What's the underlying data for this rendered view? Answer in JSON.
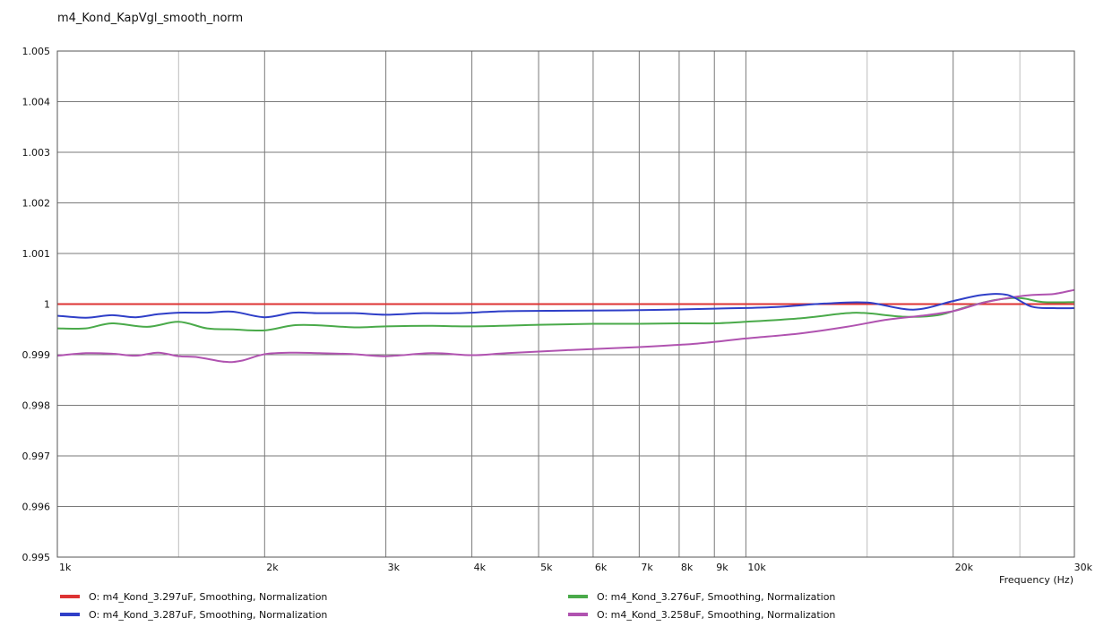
{
  "chart_data": {
    "type": "line",
    "title": "m4_Kond_KapVgl_smooth_norm",
    "xlabel": "Frequency  (Hz)",
    "ylabel": "",
    "x_scale": "log",
    "xlim": [
      1000,
      30000
    ],
    "ylim": [
      0.995,
      1.005
    ],
    "grid": true,
    "legend_position": "bottom",
    "x_major_ticks": [
      {
        "value": 1000,
        "label": "1k"
      },
      {
        "value": 2000,
        "label": "2k"
      },
      {
        "value": 3000,
        "label": "3k"
      },
      {
        "value": 4000,
        "label": "4k"
      },
      {
        "value": 5000,
        "label": "5k"
      },
      {
        "value": 6000,
        "label": "6k"
      },
      {
        "value": 7000,
        "label": "7k"
      },
      {
        "value": 8000,
        "label": "8k"
      },
      {
        "value": 9000,
        "label": "9k"
      },
      {
        "value": 10000,
        "label": "10k"
      },
      {
        "value": 20000,
        "label": "20k"
      },
      {
        "value": 30000,
        "label": "30k"
      }
    ],
    "x_minor_ticks": [
      1500,
      15000,
      25000
    ],
    "y_ticks": [
      {
        "value": 0.995,
        "label": "0.995"
      },
      {
        "value": 0.996,
        "label": "0.996"
      },
      {
        "value": 0.997,
        "label": "0.997"
      },
      {
        "value": 0.998,
        "label": "0.998"
      },
      {
        "value": 0.999,
        "label": "0.999"
      },
      {
        "value": 1.0,
        "label": "1"
      },
      {
        "value": 1.001,
        "label": "1.001"
      },
      {
        "value": 1.002,
        "label": "1.002"
      },
      {
        "value": 1.003,
        "label": "1.003"
      },
      {
        "value": 1.004,
        "label": "1.004"
      },
      {
        "value": 1.005,
        "label": "1.005"
      }
    ],
    "series": [
      {
        "name": "O: m4_Kond_3.297uF, Smoothing, Normalization",
        "color": "#dd3333",
        "x": [
          1000,
          30000
        ],
        "y": [
          1.0,
          1.0
        ]
      },
      {
        "name": "O: m4_Kond_3.287uF, Smoothing, Normalization",
        "color": "#2f3fc8",
        "x": [
          1000,
          1100,
          1200,
          1300,
          1400,
          1500,
          1650,
          1800,
          2000,
          2200,
          2400,
          2700,
          3000,
          3400,
          3800,
          4500,
          5500,
          7000,
          9000,
          11000,
          13000,
          15000,
          17500,
          20000,
          22000,
          24000,
          26000,
          28000,
          30000
        ],
        "y": [
          0.99977,
          0.99973,
          0.99978,
          0.99974,
          0.9998,
          0.99983,
          0.99983,
          0.99985,
          0.99974,
          0.99983,
          0.99982,
          0.99982,
          0.99979,
          0.99982,
          0.99982,
          0.99986,
          0.99987,
          0.99988,
          0.99991,
          0.99994,
          1.00001,
          1.00003,
          0.99989,
          1.00006,
          1.00018,
          1.00018,
          0.99995,
          0.99992,
          0.99992
        ]
      },
      {
        "name": "O: m4_Kond_3.276uF, Smoothing, Normalization",
        "color": "#4aaa4a",
        "x": [
          1000,
          1100,
          1200,
          1350,
          1500,
          1650,
          1800,
          2000,
          2200,
          2400,
          2700,
          3000,
          3500,
          4000,
          5000,
          6000,
          7000,
          8000,
          9000,
          10000,
          12000,
          14000,
          15000,
          17000,
          19000,
          21000,
          23000,
          25000,
          27000,
          30000
        ],
        "y": [
          0.99952,
          0.99952,
          0.99962,
          0.99955,
          0.99965,
          0.99952,
          0.9995,
          0.99948,
          0.99958,
          0.99958,
          0.99954,
          0.99956,
          0.99957,
          0.99956,
          0.99959,
          0.99961,
          0.99961,
          0.99962,
          0.99962,
          0.99965,
          0.99972,
          0.99982,
          0.99982,
          0.99975,
          0.99978,
          0.99995,
          1.00008,
          1.00012,
          1.00004,
          1.00004
        ]
      },
      {
        "name": "O: m4_Kond_3.258uF, Smoothing, Normalization",
        "color": "#b053b0",
        "x": [
          1000,
          1100,
          1200,
          1300,
          1400,
          1500,
          1600,
          1750,
          1850,
          2000,
          2200,
          2400,
          2700,
          3000,
          3500,
          4000,
          4500,
          5500,
          7000,
          8500,
          10000,
          12000,
          14000,
          16000,
          18000,
          20000,
          22000,
          24000,
          26000,
          28000,
          30000
        ],
        "y": [
          0.99898,
          0.99903,
          0.99902,
          0.99898,
          0.99904,
          0.99897,
          0.99895,
          0.99886,
          0.99888,
          0.99901,
          0.99904,
          0.99903,
          0.99901,
          0.99897,
          0.99903,
          0.99899,
          0.99903,
          0.99909,
          0.99915,
          0.99922,
          0.99932,
          0.99942,
          0.99955,
          0.99969,
          0.99977,
          0.99986,
          1.00002,
          1.00012,
          1.00018,
          1.0002,
          1.00028
        ]
      }
    ]
  }
}
